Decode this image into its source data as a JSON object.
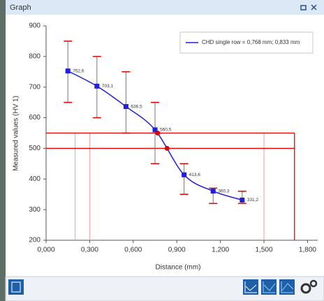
{
  "window": {
    "title": "Graph"
  },
  "chart_data": {
    "type": "line",
    "x_label": "Distance (mm)",
    "y_label": "Measured values (HV 1)",
    "series": [
      {
        "name": "CHD single row = 0,768 mm; 0,833 mm",
        "color": "#1f1fdc",
        "x": [
          0.15,
          0.35,
          0.55,
          0.75,
          0.95,
          1.15,
          1.35
        ],
        "values": [
          752.6,
          703.1,
          636.5,
          560.5,
          413.6,
          360.3,
          331.2
        ],
        "value_labels": [
          "752,6",
          "703,1",
          "636,5",
          "560,5",
          "413,6",
          "360,3",
          "331,2"
        ],
        "lower": [
          650,
          600,
          550,
          450,
          350,
          320,
          320
        ],
        "upper": [
          850,
          800,
          750,
          650,
          450,
          370,
          360
        ]
      }
    ],
    "limits": [
      550,
      500
    ],
    "limit_end": 1.71,
    "guides": [
      0.2,
      0.3,
      1.5
    ],
    "chd": [
      0.768,
      0.833
    ],
    "xlim": [
      0,
      1.87
    ],
    "ylim": [
      200,
      900
    ],
    "xticks": [
      {
        "value": 0,
        "label": "0,000"
      },
      {
        "value": 0.3,
        "label": "0,300"
      },
      {
        "value": 0.6,
        "label": "0,600"
      },
      {
        "value": 0.9,
        "label": "0,900"
      },
      {
        "value": 1.2,
        "label": "1,200"
      },
      {
        "value": 1.5,
        "label": "1,500"
      },
      {
        "value": 1.8,
        "label": "1,800"
      }
    ],
    "yticks": [
      200,
      300,
      400,
      500,
      600,
      700,
      800,
      900
    ],
    "legend": "top-right"
  }
}
